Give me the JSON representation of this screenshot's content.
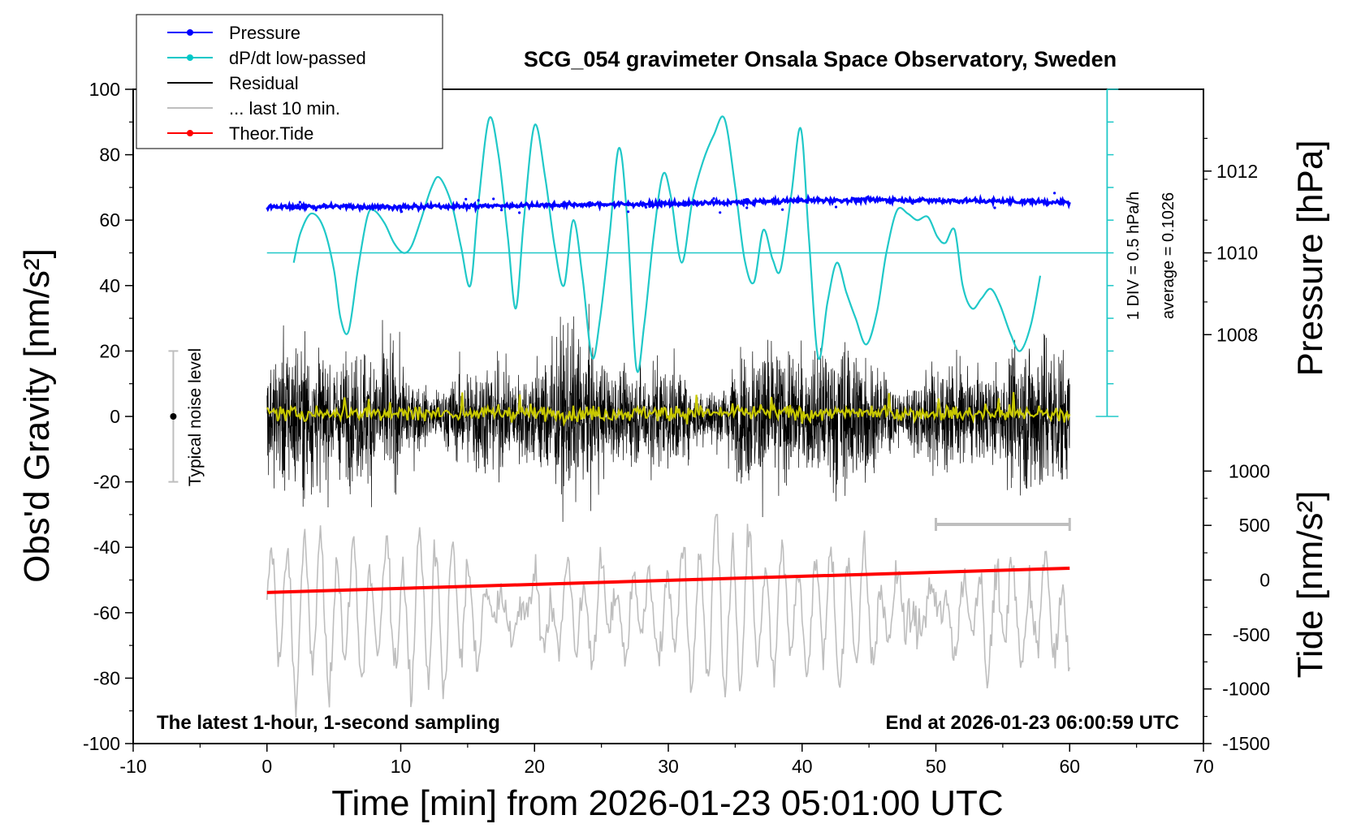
{
  "chart_data": {
    "type": "line",
    "title": "SCG_054 gravimeter Onsala Space Observatory, Sweden",
    "xlabel": "Time [min] from 2026-01-23 05:01:00 UTC",
    "ylabel_left": "Obs'd Gravity [nm/s²]",
    "ylabel_right_top": "Pressure [hPa]",
    "ylabel_right_bottom": "Tide [nm/s²]",
    "xlim": [
      -10,
      70
    ],
    "ylim": [
      -100,
      100
    ],
    "xticks": [
      -10,
      0,
      10,
      20,
      30,
      40,
      50,
      60,
      70
    ],
    "yticks": [
      -100,
      -80,
      -60,
      -40,
      -20,
      0,
      20,
      40,
      60,
      80,
      100
    ],
    "pressure_axis": {
      "ticks": [
        1008,
        1010,
        1012
      ],
      "gravity_equiv": [
        25,
        50,
        75
      ]
    },
    "tide_axis": {
      "ticks": [
        -1500,
        -1000,
        -500,
        0,
        500,
        1000
      ],
      "gravity_equiv": [
        -100,
        -83.3,
        -66.7,
        -50,
        -33.3,
        -16.7
      ]
    },
    "legend": {
      "position": "top-left",
      "entries": [
        {
          "label": "Pressure",
          "color": "#0000ff",
          "marker": true
        },
        {
          "label": "dP/dt low-passed",
          "color": "#00c8c8",
          "marker": true
        },
        {
          "label": "Residual",
          "color": "#000000",
          "marker": false
        },
        {
          "label": "... last 10 min.",
          "color": "#bebebe",
          "marker": false
        },
        {
          "label": "Theor.Tide",
          "color": "#ff0000",
          "marker": true
        }
      ]
    },
    "noise_level": {
      "label": "Typical noise level",
      "x": -7,
      "center": 0,
      "range": [
        -20,
        20
      ]
    },
    "dpdt_scale": {
      "div_label": "1 DIV = 0.5 hPa/h",
      "average_label": "average = 0.1026",
      "x": 62.8,
      "y_top": 100,
      "y_bottom": 0,
      "baseline": 50
    },
    "last10_bar": {
      "x_start": 50,
      "x_end": 60,
      "y": -33
    },
    "footer_left": "The latest 1-hour, 1-second sampling",
    "footer_right": "End at 2026-01-23 06:00:59 UTC",
    "series": [
      {
        "name": "dP/dt low-passed",
        "color": "#20c8c8",
        "x": [
          2.0,
          2.5,
          3.3,
          4.2,
          5.0,
          5.5,
          6.1,
          6.8,
          7.5,
          8.0,
          8.8,
          9.5,
          10.2,
          10.8,
          11.5,
          12.3,
          12.9,
          13.8,
          14.5,
          15.2,
          15.8,
          16.6,
          17.3,
          18.0,
          18.6,
          19.2,
          20.0,
          20.8,
          21.5,
          22.2,
          22.9,
          23.6,
          24.3,
          24.9,
          25.6,
          26.3,
          26.9,
          27.6,
          28.2,
          28.9,
          29.6,
          30.2,
          31.0,
          31.8,
          32.6,
          33.4,
          34.2,
          35.0,
          35.7,
          36.4,
          37.1,
          37.8,
          38.4,
          39.2,
          39.9,
          40.5,
          41.2,
          41.9,
          42.6,
          43.3,
          44.0,
          44.8,
          45.6,
          46.3,
          47.1,
          47.9,
          48.6,
          49.4,
          50.1,
          50.7,
          51.4,
          52.0,
          52.7,
          53.4,
          54.1,
          54.8,
          55.6,
          56.3,
          57.1,
          57.8
        ],
        "y": [
          47,
          56,
          62,
          58,
          45,
          30,
          26,
          45,
          61,
          63,
          59,
          53,
          50,
          52,
          60,
          70,
          73,
          65,
          52,
          40,
          65,
          91,
          80,
          55,
          33,
          60,
          89,
          73,
          52,
          40,
          60,
          42,
          18,
          30,
          55,
          82,
          62,
          15,
          28,
          55,
          74,
          67,
          47,
          66,
          78,
          86,
          91,
          70,
          48,
          41,
          57,
          48,
          45,
          68,
          88,
          55,
          18,
          35,
          47,
          38,
          30,
          22,
          32,
          50,
          63,
          62,
          60,
          61,
          55,
          53,
          57,
          40,
          33,
          36,
          39,
          34,
          25,
          20,
          28,
          43
        ]
      },
      {
        "name": "Pressure",
        "color": "#0000ff",
        "x": [
          0,
          5,
          10,
          15,
          20,
          25,
          30,
          35,
          40,
          45,
          50,
          55,
          60
        ],
        "y": [
          64.0,
          64.2,
          64.0,
          64.3,
          64.6,
          64.8,
          65.0,
          65.4,
          66.0,
          66.2,
          66.0,
          65.8,
          65.4
        ]
      },
      {
        "name": "Theor.Tide",
        "color": "#ff0000",
        "x": [
          0,
          60
        ],
        "y": [
          -53.8,
          -46.4
        ]
      },
      {
        "name": "Residual",
        "color": "#000000",
        "x": [
          0,
          60
        ],
        "amplitude_envelope": [
          -40,
          36
        ],
        "y_mean": 0
      },
      {
        "name": "Residual low-passed",
        "color": "#c8c800",
        "x": [
          0,
          60
        ],
        "y_mean": 1
      },
      {
        "name": "... last 10 min.",
        "color": "#bebebe",
        "x": [
          0,
          60
        ],
        "y_mean": -60,
        "amplitude_envelope": [
          -100,
          -30
        ]
      }
    ]
  }
}
